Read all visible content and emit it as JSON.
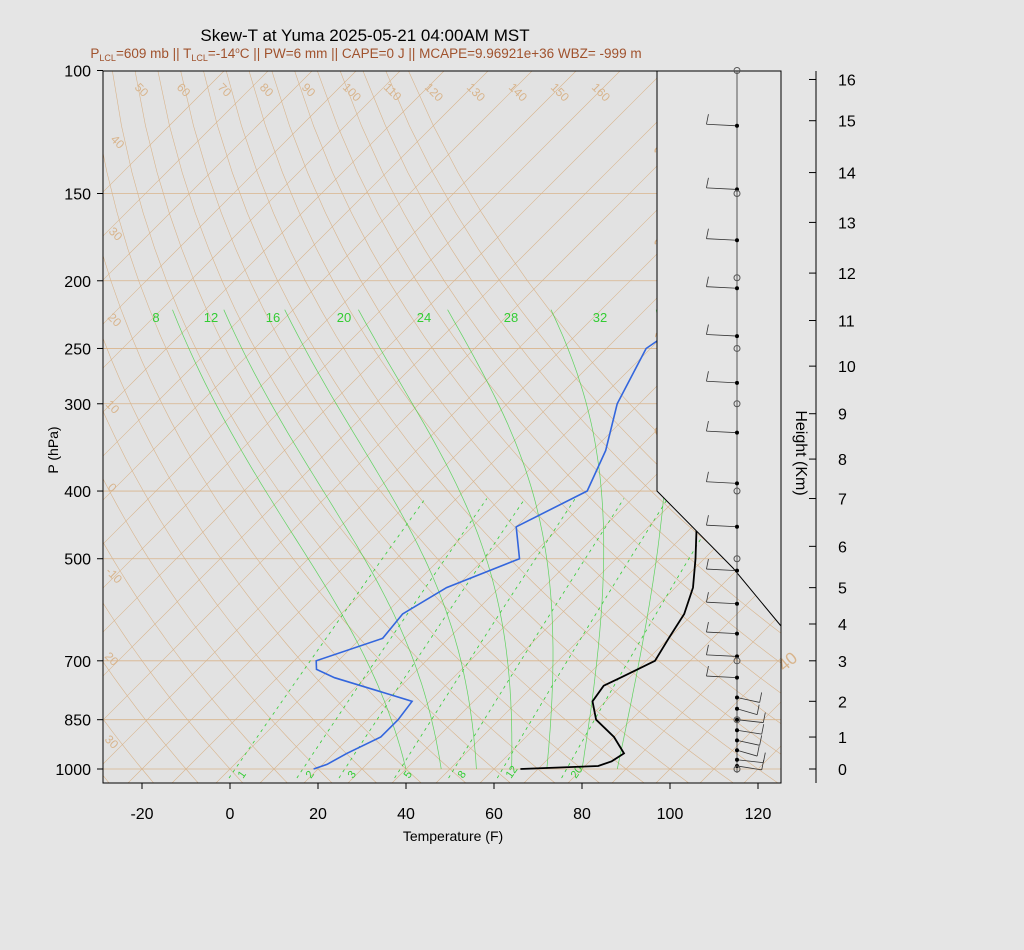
{
  "title": "Skew-T at Yuma 2025-05-21 04:00AM MST",
  "subtitle": {
    "p_lcl": "=609 mb || T",
    "t_lcl": "=-14",
    "deg": "o",
    "rest": "C || PW=6 mm || CAPE=0 J || MCAPE=9.96921e+36 WBZ= -999 m"
  },
  "colors": {
    "background": "#e5e5e5",
    "temperature": "#000000",
    "dewpoint": "#3366dd",
    "background_lines": "#d8b48c",
    "mixing_ratio": "#33cc33",
    "subtitle": "#a0522d"
  },
  "chart_data": {
    "type": "line",
    "diagram": "skew-t log-p",
    "xlabel": "Temperature (F)",
    "ylabel": "P (hPa)",
    "y2label": "Height (Km)",
    "xlim": [
      -28,
      125
    ],
    "ylim_hpa": [
      1030,
      100
    ],
    "x_ticks": [
      -20,
      0,
      20,
      40,
      60,
      80,
      100,
      120
    ],
    "pressure_ticks": [
      100,
      150,
      200,
      250,
      300,
      400,
      500,
      700,
      850,
      1000
    ],
    "height_ticks": [
      0,
      1,
      2,
      3,
      4,
      5,
      6,
      7,
      8,
      9,
      10,
      11,
      12,
      13,
      14,
      15,
      16
    ],
    "isotherm_labels": [
      -30,
      -20,
      -10,
      0,
      10,
      20,
      30,
      40,
      50,
      60,
      70,
      80,
      90,
      100,
      110,
      120,
      130,
      140,
      150,
      160
    ],
    "isotherm_side_labels": [
      "40",
      "30",
      "20",
      "10",
      "0",
      "-10",
      "20",
      "30"
    ],
    "isotherm_right_labels": [
      "30",
      "20",
      "10",
      "0",
      "10",
      "20",
      "30",
      "40"
    ],
    "mixing_ratio_labels_top": [
      8,
      12,
      16,
      20,
      24,
      28,
      32
    ],
    "mixing_ratio_labels_bottom": [
      1,
      2,
      3,
      5,
      8,
      12,
      20
    ],
    "series": [
      {
        "name": "Temperature",
        "points": [
          [
            1000,
            66
          ],
          [
            990,
            83
          ],
          [
            975,
            85
          ],
          [
            950,
            86
          ],
          [
            900,
            80
          ],
          [
            850,
            72
          ],
          [
            800,
            67
          ],
          [
            760,
            66
          ],
          [
            740,
            68
          ],
          [
            700,
            72
          ],
          [
            650,
            70
          ],
          [
            600,
            68
          ],
          [
            550,
            64
          ],
          [
            500,
            58
          ],
          [
            450,
            51
          ],
          [
            400,
            43
          ],
          [
            350,
            33
          ],
          [
            300,
            24
          ],
          [
            250,
            15
          ],
          [
            200,
            9
          ],
          [
            170,
            6
          ],
          [
            140,
            5
          ],
          [
            130,
            6
          ],
          [
            120,
            11
          ],
          [
            110,
            18
          ],
          [
            100,
            24
          ]
        ]
      },
      {
        "name": "Dewpoint",
        "points": [
          [
            1000,
            19
          ],
          [
            985,
            21
          ],
          [
            950,
            23
          ],
          [
            900,
            27
          ],
          [
            850,
            27
          ],
          [
            800,
            26
          ],
          [
            740,
            3
          ],
          [
            720,
            -3
          ],
          [
            700,
            -5
          ],
          [
            650,
            5
          ],
          [
            600,
            4
          ],
          [
            550,
            8
          ],
          [
            500,
            18
          ],
          [
            450,
            10
          ],
          [
            400,
            18
          ],
          [
            350,
            13
          ],
          [
            300,
            5
          ],
          [
            250,
            -1
          ],
          [
            220,
            3
          ],
          [
            190,
            -5
          ],
          [
            160,
            -2
          ],
          [
            130,
            8
          ],
          [
            100,
            19
          ]
        ]
      }
    ],
    "height_axis_map_km_to_hpa": [
      [
        0,
        1000
      ],
      [
        1,
        900
      ],
      [
        2,
        800
      ],
      [
        3,
        700
      ],
      [
        4,
        620
      ],
      [
        5,
        550
      ],
      [
        6,
        480
      ],
      [
        7,
        410
      ],
      [
        8,
        360
      ],
      [
        9,
        310
      ],
      [
        10,
        265
      ],
      [
        11,
        228
      ],
      [
        12,
        195
      ],
      [
        13,
        165
      ],
      [
        14,
        140
      ],
      [
        15,
        118
      ],
      [
        16,
        103
      ]
    ]
  }
}
